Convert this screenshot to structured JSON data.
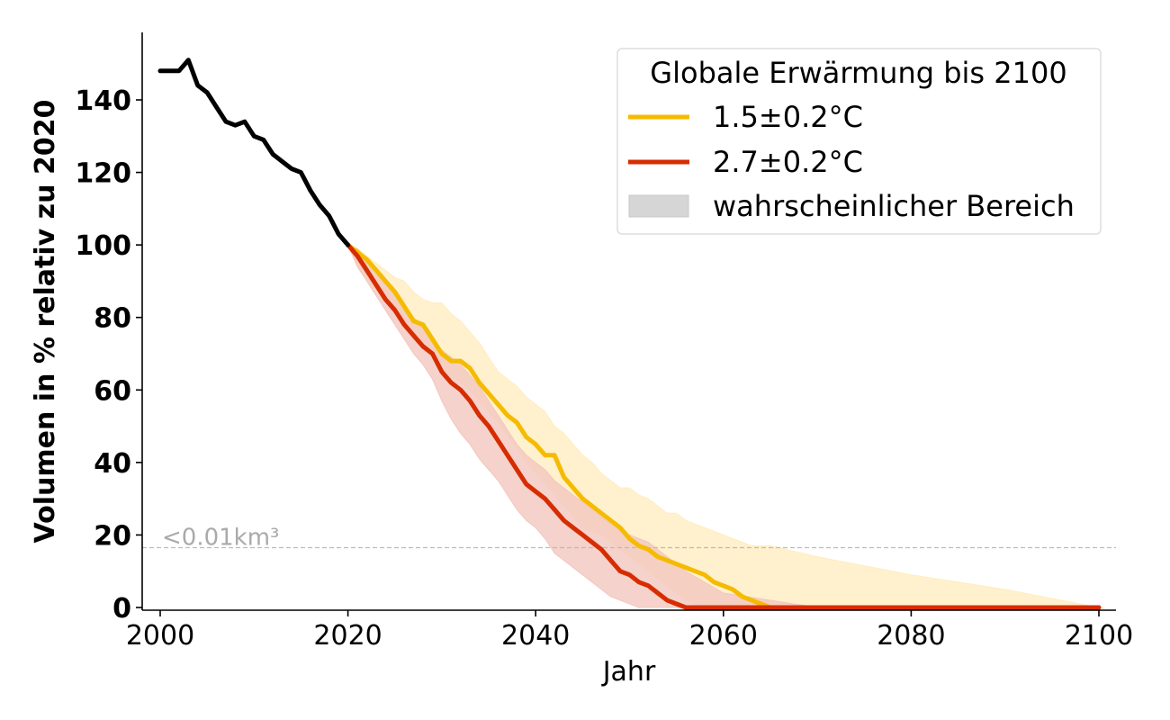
{
  "chart_data": {
    "type": "line",
    "xlabel": "Jahr",
    "ylabel": "Volumen in % relativ zu 2020",
    "xlim": [
      1998,
      2102
    ],
    "ylim": [
      -1,
      158
    ],
    "xticks": [
      2000,
      2020,
      2040,
      2060,
      2080,
      2100
    ],
    "yticks": [
      0,
      20,
      40,
      60,
      80,
      100,
      120,
      140
    ],
    "grid": false,
    "legend": {
      "title": "Globale Erwärmung bis 2100",
      "placement": "top-right",
      "entries": [
        "1.5±0.2°C",
        "2.7±0.2°C",
        "wahrscheinlicher Bereich"
      ]
    },
    "threshold": {
      "y": 16.5,
      "label": "<0.01km³"
    },
    "series": [
      {
        "name": "historical",
        "color": "#000000",
        "x": [
          2000,
          2001,
          2002,
          2003,
          2004,
          2005,
          2006,
          2007,
          2008,
          2009,
          2010,
          2011,
          2012,
          2013,
          2014,
          2015,
          2016,
          2017,
          2018,
          2019,
          2020
        ],
        "y": [
          148,
          148,
          148,
          151,
          144,
          142,
          138,
          134,
          133,
          134,
          130,
          129,
          125,
          123,
          121,
          120,
          115,
          111,
          108,
          103,
          100
        ]
      },
      {
        "name": "1.5±0.2°C",
        "color": "#f5bb00",
        "band_color": "#ffedc0",
        "x": [
          2020,
          2021,
          2022,
          2023,
          2024,
          2025,
          2026,
          2027,
          2028,
          2029,
          2030,
          2031,
          2032,
          2033,
          2034,
          2035,
          2036,
          2037,
          2038,
          2039,
          2040,
          2041,
          2042,
          2043,
          2044,
          2045,
          2046,
          2047,
          2048,
          2049,
          2050,
          2051,
          2052,
          2053,
          2054,
          2055,
          2056,
          2057,
          2058,
          2059,
          2060,
          2061,
          2062,
          2063,
          2064,
          2065,
          2070,
          2080,
          2090,
          2100
        ],
        "y": [
          100,
          98,
          96,
          93,
          90,
          87,
          83,
          79,
          78,
          74,
          70,
          68,
          68,
          66,
          62,
          59,
          56,
          53,
          51,
          47,
          45,
          42,
          42,
          36,
          33,
          30,
          28,
          26,
          24,
          22,
          19,
          17,
          16,
          14,
          13,
          12,
          11,
          10,
          9,
          7,
          6,
          5,
          3,
          2,
          1,
          0,
          0,
          0,
          0,
          0
        ],
        "lower": [
          100,
          94,
          91,
          88,
          85,
          82,
          79,
          76,
          73,
          70,
          66,
          64,
          62,
          60,
          57,
          54,
          51,
          47,
          44,
          40,
          37,
          34,
          31,
          28,
          25,
          22,
          21,
          20,
          18,
          16,
          14,
          12,
          10,
          8,
          6,
          4,
          2,
          1,
          0,
          0,
          0,
          0,
          0,
          0,
          0,
          0,
          0,
          0,
          0,
          0
        ],
        "upper": [
          100,
          99,
          97,
          95,
          93,
          91,
          90,
          87,
          85,
          84,
          84,
          81,
          79,
          76,
          73,
          69,
          65,
          63,
          61,
          58,
          56,
          54,
          50,
          48,
          45,
          42,
          40,
          37,
          35,
          33,
          33,
          31,
          30,
          28,
          26,
          26,
          24,
          23,
          22,
          21,
          20,
          19,
          18,
          17,
          17,
          17,
          14,
          9,
          5,
          0
        ]
      },
      {
        "name": "2.7±0.2°C",
        "color": "#d62d00",
        "band_color": "#f3c7bf",
        "x": [
          2020,
          2021,
          2022,
          2023,
          2024,
          2025,
          2026,
          2027,
          2028,
          2029,
          2030,
          2031,
          2032,
          2033,
          2034,
          2035,
          2036,
          2037,
          2038,
          2039,
          2040,
          2041,
          2042,
          2043,
          2044,
          2045,
          2046,
          2047,
          2048,
          2049,
          2050,
          2051,
          2052,
          2053,
          2054,
          2055,
          2056,
          2060,
          2070,
          2080,
          2090,
          2100
        ],
        "y": [
          100,
          97,
          93,
          89,
          85,
          82,
          78,
          75,
          72,
          70,
          65,
          62,
          60,
          57,
          53,
          50,
          46,
          42,
          38,
          34,
          32,
          30,
          27,
          24,
          22,
          20,
          18,
          16,
          13,
          10,
          9,
          7,
          6,
          4,
          2,
          1,
          0,
          0,
          0,
          0,
          0,
          0
        ],
        "lower": [
          100,
          94,
          90,
          86,
          82,
          78,
          74,
          70,
          67,
          63,
          57,
          52,
          48,
          45,
          41,
          38,
          35,
          31,
          27,
          24,
          22,
          19,
          15,
          13,
          11,
          9,
          7,
          5,
          3,
          2,
          1,
          0,
          0,
          0,
          0,
          0,
          0,
          0,
          0,
          0,
          0,
          0
        ],
        "upper": [
          100,
          99,
          96,
          93,
          89,
          86,
          83,
          80,
          77,
          74,
          71,
          69,
          67,
          64,
          61,
          57,
          53,
          49,
          45,
          42,
          40,
          38,
          35,
          33,
          31,
          29,
          27,
          25,
          23,
          21,
          20,
          19,
          18,
          16,
          14,
          12,
          10,
          4,
          0,
          0,
          0,
          0
        ]
      }
    ]
  }
}
